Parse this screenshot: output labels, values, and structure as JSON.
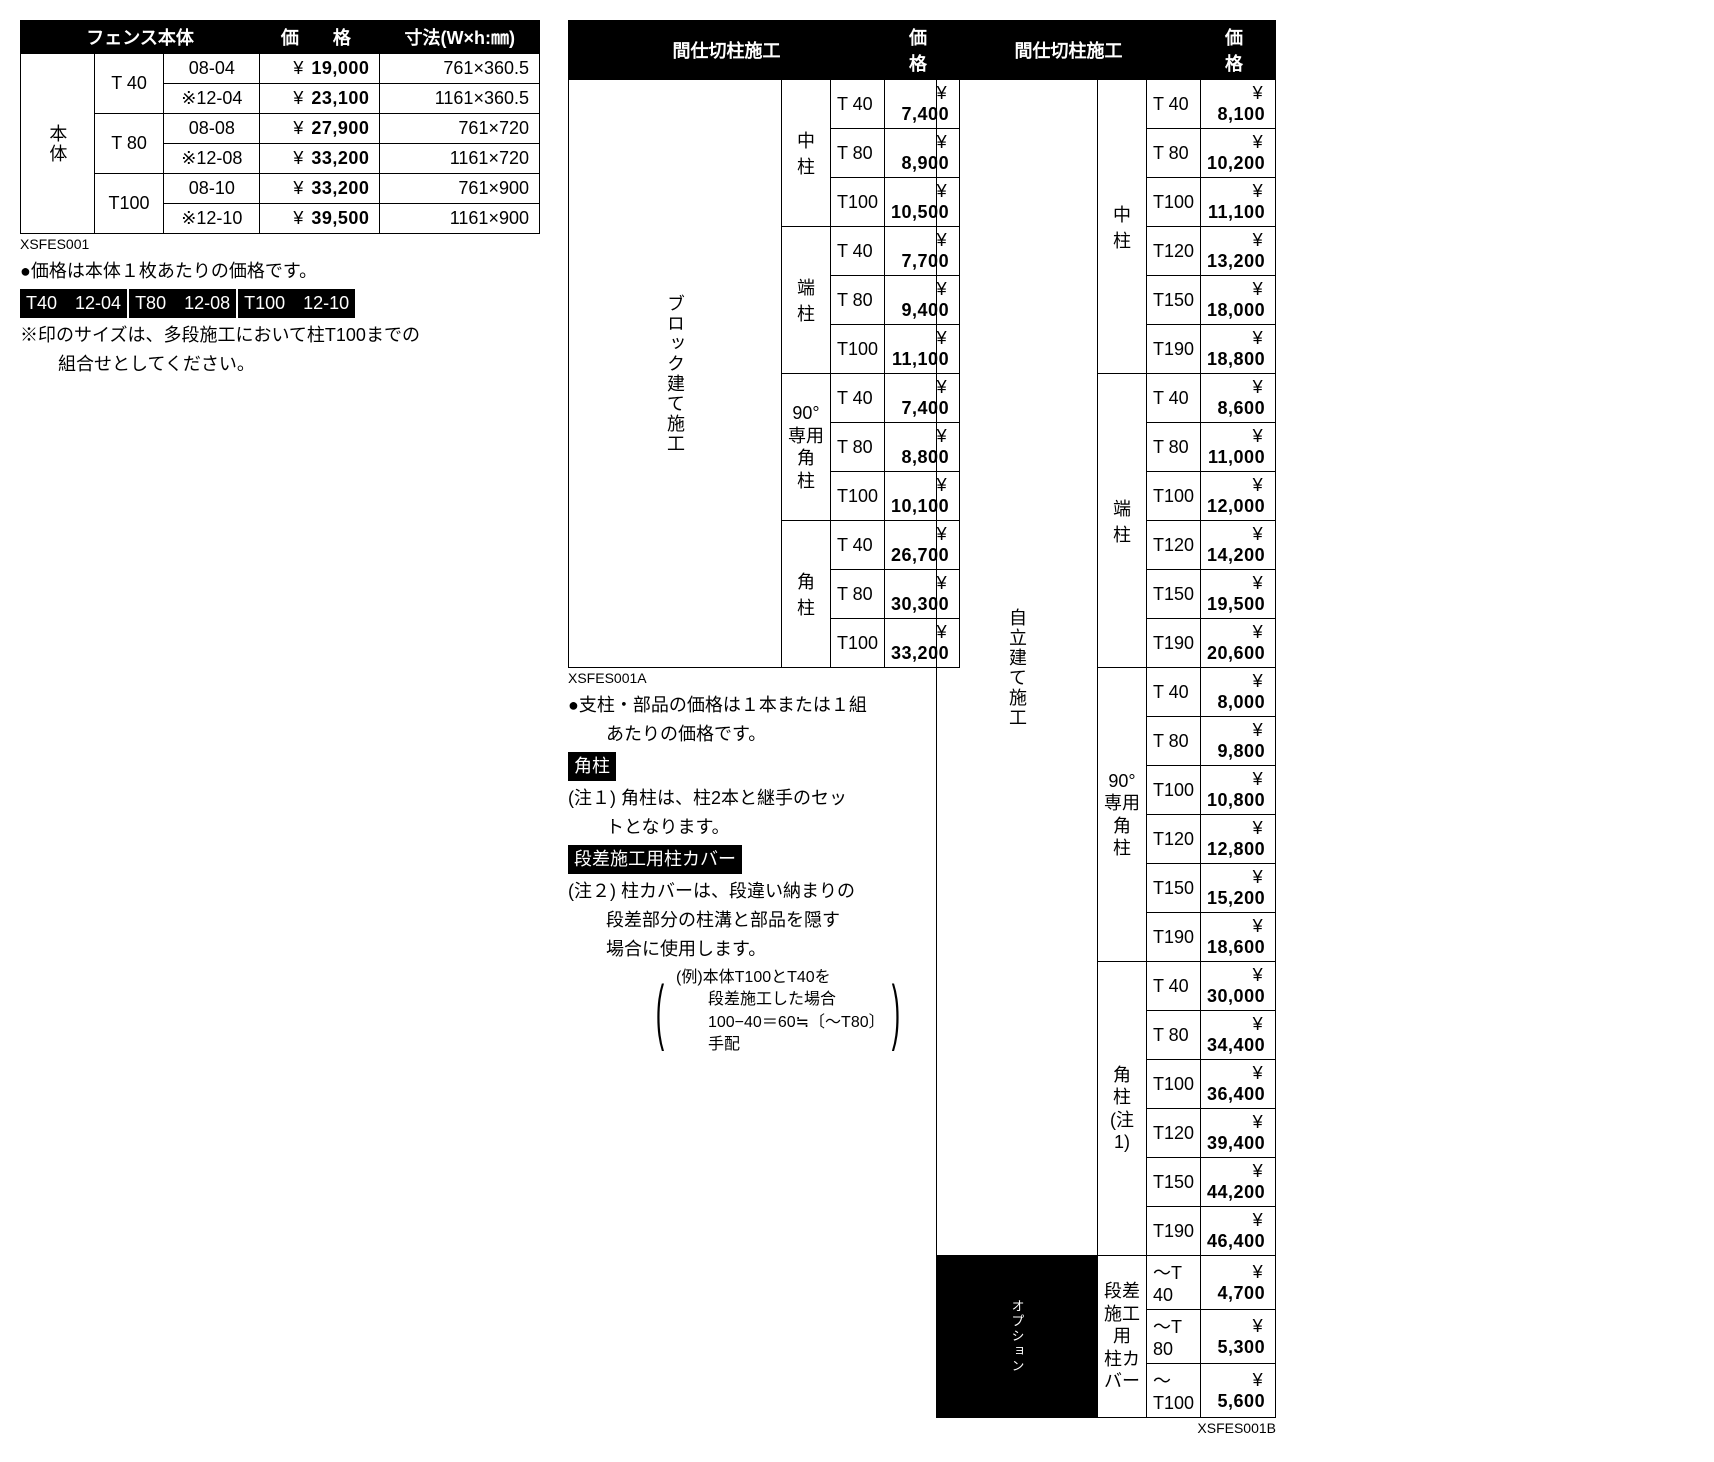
{
  "table1": {
    "head": {
      "c1": "フェンス本体",
      "c2": "価　格",
      "c3": "寸法(W×h:㎜)"
    },
    "vcat": "本体",
    "groups": [
      {
        "label": "T 40",
        "rows": [
          {
            "code": "08-04",
            "price": "19,000",
            "dim": "761×360.5"
          },
          {
            "code": "※12-04",
            "price": "23,100",
            "dim": "1161×360.5"
          }
        ]
      },
      {
        "label": "T 80",
        "rows": [
          {
            "code": "08-08",
            "price": "27,900",
            "dim": "761×720"
          },
          {
            "code": "※12-08",
            "price": "33,200",
            "dim": "1161×720"
          }
        ]
      },
      {
        "label": "T100",
        "rows": [
          {
            "code": "08-10",
            "price": "33,200",
            "dim": "761×900"
          },
          {
            "code": "※12-10",
            "price": "39,500",
            "dim": "1161×900"
          }
        ]
      }
    ],
    "code_below": "XSFES001",
    "note1": "●価格は本体１枚あたりの価格です。",
    "inv_labels": [
      "T40　12-04",
      "T80　12-08",
      "T100　12-10"
    ],
    "note2a": "※印のサイズは、多段施工において柱T100までの",
    "note2b": "組合せとしてください。"
  },
  "table2": {
    "head": {
      "c1": "間仕切柱施工",
      "c2": "価　格"
    },
    "vcat": "ブロック建て施工",
    "groups": [
      {
        "label": "中　柱",
        "rows": [
          {
            "t": "T 40",
            "p": "7,400"
          },
          {
            "t": "T 80",
            "p": "8,900"
          },
          {
            "t": "T100",
            "p": "10,500"
          }
        ]
      },
      {
        "label": "端　柱",
        "rows": [
          {
            "t": "T 40",
            "p": "7,700"
          },
          {
            "t": "T 80",
            "p": "9,400"
          },
          {
            "t": "T100",
            "p": "11,100"
          }
        ]
      },
      {
        "label": "90°専用",
        "label2": "角　柱",
        "rows": [
          {
            "t": "T 40",
            "p": "7,400"
          },
          {
            "t": "T 80",
            "p": "8,800"
          },
          {
            "t": "T100",
            "p": "10,100"
          }
        ]
      },
      {
        "label": "角　柱",
        "rows": [
          {
            "t": "T 40",
            "p": "26,700"
          },
          {
            "t": "T 80",
            "p": "30,300"
          },
          {
            "t": "T100",
            "p": "33,200"
          }
        ]
      }
    ],
    "code_below": "XSFES001A",
    "n1": "●支柱・部品の価格は１本または１組",
    "n1b": "あたりの価格です。",
    "inv1": "角柱",
    "n2a": "(注１) 角柱は、柱2本と継手のセッ",
    "n2b": "トとなります。",
    "inv2": "段差施工用柱カバー",
    "n3a": "(注２) 柱カバーは、段違い納まりの",
    "n3b": "段差部分の柱溝と部品を隠す",
    "n3c": "場合に使用します。",
    "ex1": "(例)本体T100とT40を",
    "ex2": "段差施工した場合",
    "ex3": "100−40＝60≒〔〜T80〕手配"
  },
  "table3": {
    "head": {
      "c1": "間仕切柱施工",
      "c2": "価　格"
    },
    "vcat": "自立建て施工",
    "opt_vcat": "オプション",
    "groups": [
      {
        "label": "中　柱",
        "rows": [
          {
            "t": "T 40",
            "p": "8,100"
          },
          {
            "t": "T 80",
            "p": "10,200"
          },
          {
            "t": "T100",
            "p": "11,100"
          },
          {
            "t": "T120",
            "p": "13,200"
          },
          {
            "t": "T150",
            "p": "18,000"
          },
          {
            "t": "T190",
            "p": "18,800"
          }
        ]
      },
      {
        "label": "端　柱",
        "rows": [
          {
            "t": "T 40",
            "p": "8,600"
          },
          {
            "t": "T 80",
            "p": "11,000"
          },
          {
            "t": "T100",
            "p": "12,000"
          },
          {
            "t": "T120",
            "p": "14,200"
          },
          {
            "t": "T150",
            "p": "19,500"
          },
          {
            "t": "T190",
            "p": "20,600"
          }
        ]
      },
      {
        "label": "90°専用",
        "label2": "角　柱",
        "rows": [
          {
            "t": "T 40",
            "p": "8,000"
          },
          {
            "t": "T 80",
            "p": "9,800"
          },
          {
            "t": "T100",
            "p": "10,800"
          },
          {
            "t": "T120",
            "p": "12,800"
          },
          {
            "t": "T150",
            "p": "15,200"
          },
          {
            "t": "T190",
            "p": "18,600"
          }
        ]
      },
      {
        "label": "角　柱",
        "label2": "(注1)",
        "rows": [
          {
            "t": "T 40",
            "p": "30,000"
          },
          {
            "t": "T 80",
            "p": "34,400"
          },
          {
            "t": "T100",
            "p": "36,400"
          },
          {
            "t": "T120",
            "p": "39,400"
          },
          {
            "t": "T150",
            "p": "44,200"
          },
          {
            "t": "T190",
            "p": "46,400"
          }
        ]
      }
    ],
    "option": {
      "label": "段差施工用",
      "label2": "柱カバー",
      "rows": [
        {
          "t": "〜T 40",
          "p": "4,700"
        },
        {
          "t": "〜T 80",
          "p": "5,300"
        },
        {
          "t": "〜T100",
          "p": "5,600"
        }
      ]
    },
    "code_below": "XSFES001B"
  }
}
